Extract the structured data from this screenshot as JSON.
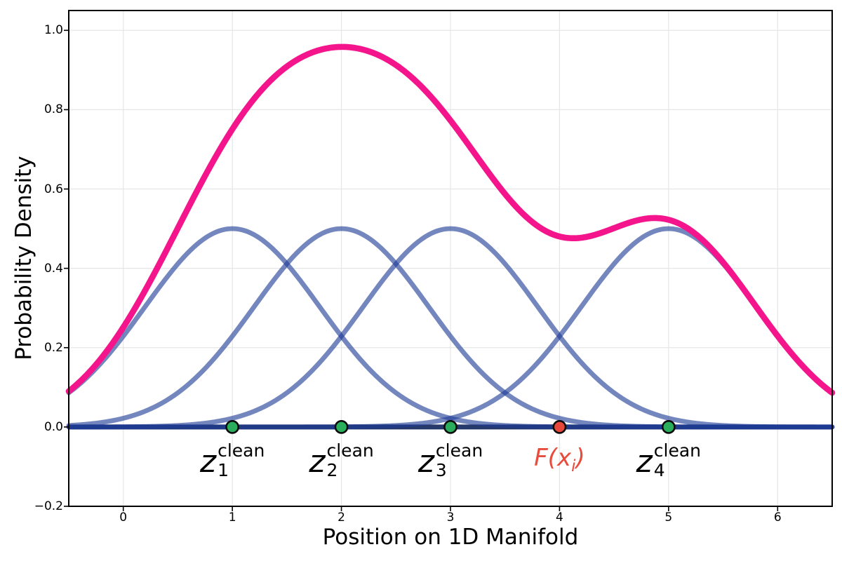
{
  "chart_data": {
    "type": "line",
    "title": "",
    "xlabel": "Position on 1D Manifold",
    "ylabel": "Probability Density",
    "xlim": [
      -0.5,
      6.5
    ],
    "ylim": [
      -0.2,
      1.05
    ],
    "grid": true,
    "xtick_values": [
      0,
      1,
      2,
      3,
      4,
      5,
      6
    ],
    "xtick_labels": [
      "0",
      "1",
      "2",
      "3",
      "4",
      "5",
      "6"
    ],
    "ytick_values": [
      -0.2,
      0.0,
      0.2,
      0.4,
      0.6,
      0.8,
      1.0
    ],
    "ytick_labels": [
      "−0.2",
      "0.0",
      "0.2",
      "0.4",
      "0.6",
      "0.8",
      "1.0"
    ],
    "components": {
      "name": "gaussian-basis-densities",
      "centers": [
        1,
        2,
        3,
        5
      ],
      "sigma": 0.8,
      "peak_height": 0.5
    },
    "mixture": {
      "name": "mixture-density",
      "rule": "sum_of_components",
      "peak": {
        "x": 2.0,
        "y": 0.958
      },
      "local_min": {
        "x": 4.1,
        "y": 0.47
      },
      "local_max": {
        "x": 4.9,
        "y": 0.53
      }
    },
    "manifold_line": {
      "y": 0.0
    },
    "markers": [
      {
        "x": 1,
        "y": 0,
        "kind": "clean",
        "label": {
          "base": "z",
          "sub": "1",
          "sup": "clean"
        }
      },
      {
        "x": 2,
        "y": 0,
        "kind": "clean",
        "label": {
          "base": "z",
          "sub": "2",
          "sup": "clean"
        }
      },
      {
        "x": 3,
        "y": 0,
        "kind": "clean",
        "label": {
          "base": "z",
          "sub": "3",
          "sup": "clean"
        }
      },
      {
        "x": 4,
        "y": 0,
        "kind": "encoded",
        "label": {
          "prefix": "F(x",
          "sub": "i",
          "suffix": ")"
        }
      },
      {
        "x": 5,
        "y": 0,
        "kind": "clean",
        "label": {
          "base": "z",
          "sub": "4",
          "sup": "clean"
        }
      }
    ],
    "colors": {
      "mixture": "#F4148C",
      "component": "#1E3C96",
      "component_opacity": 0.62,
      "manifold": "#26396A",
      "clean_marker": "#2BAE5C",
      "encoded_marker": "#E8483B",
      "encoded_label": "#E74C3C",
      "marker_edge": "#0d0d0d",
      "grid": "#E6E6E6",
      "axis": "#000000"
    }
  }
}
